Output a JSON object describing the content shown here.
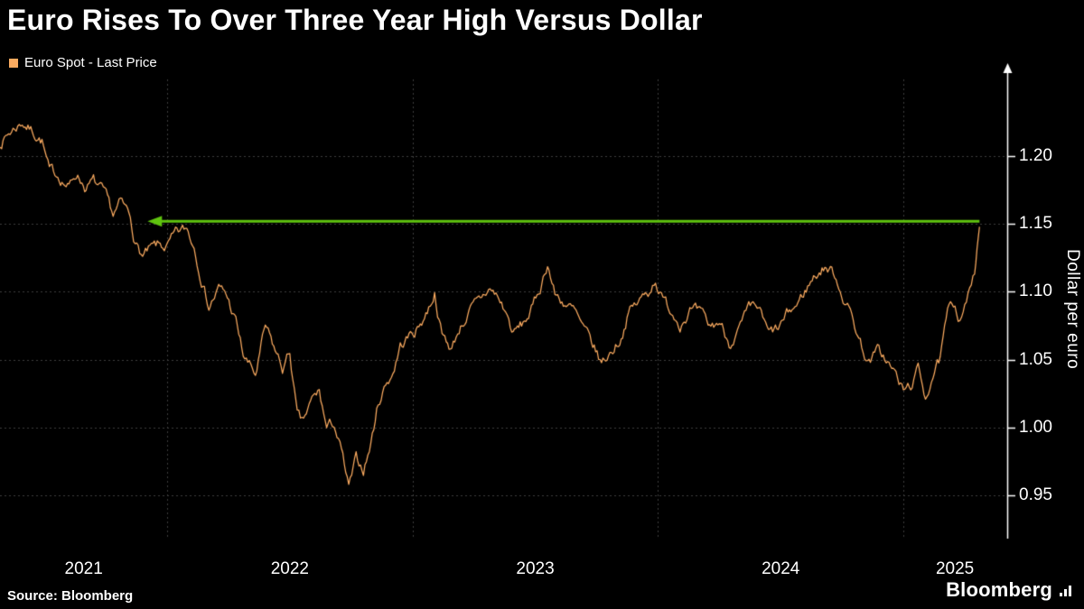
{
  "header": {
    "title": "Euro Rises To Over Three Year High Versus Dollar"
  },
  "legend": {
    "label": "Euro Spot - Last Price"
  },
  "axes": {
    "y_label": "Dollar per euro"
  },
  "footer": {
    "source_label": "Source: Bloomberg",
    "brand": "Bloomberg"
  },
  "colors": {
    "background": "#000000",
    "text": "#ffffff",
    "grid": "#3e3e3e",
    "axis": "#ffffff",
    "line": "#fbab60",
    "arrow": "#5fc30f"
  },
  "chart_data": {
    "type": "line",
    "title": "Euro Rises To Over Three Year High Versus Dollar",
    "xlabel": "",
    "ylabel": "Dollar per euro",
    "legend_position": "top-left",
    "grid": "dotted",
    "x_domain": [
      2021.319,
      2025.423
    ],
    "y_domain": [
      0.918,
      1.2567
    ],
    "y_ticks": [
      0.95,
      1.0,
      1.05,
      1.1,
      1.15,
      1.2
    ],
    "x_gridlines": [
      2022,
      2023,
      2024,
      2025
    ],
    "x_tick_labels": [
      {
        "label": "2021",
        "x": 2021.66
      },
      {
        "label": "2022",
        "x": 2022.5
      },
      {
        "label": "2023",
        "x": 2023.5
      },
      {
        "label": "2024",
        "x": 2024.5
      },
      {
        "label": "2025",
        "x": 2025.21
      }
    ],
    "annotation": {
      "type": "arrow-left",
      "y": 1.152,
      "x_start": 2025.31,
      "x_end": 2021.92,
      "color": "#5fc30f"
    },
    "series": [
      {
        "name": "Euro Spot - Last Price",
        "color": "#fbab60",
        "points": [
          [
            2021.32,
            1.21
          ],
          [
            2021.36,
            1.218
          ],
          [
            2021.41,
            1.2255
          ],
          [
            2021.45,
            1.219
          ],
          [
            2021.49,
            1.212
          ],
          [
            2021.52,
            1.188
          ],
          [
            2021.56,
            1.186
          ],
          [
            2021.6,
            1.177
          ],
          [
            2021.63,
            1.188
          ],
          [
            2021.67,
            1.177
          ],
          [
            2021.7,
            1.181
          ],
          [
            2021.74,
            1.172
          ],
          [
            2021.78,
            1.156
          ],
          [
            2021.81,
            1.165
          ],
          [
            2021.85,
            1.156
          ],
          [
            2021.87,
            1.137
          ],
          [
            2021.9,
            1.126
          ],
          [
            2021.93,
            1.13
          ],
          [
            2021.96,
            1.133
          ],
          [
            2022.0,
            1.133
          ],
          [
            2022.04,
            1.142
          ],
          [
            2022.08,
            1.146
          ],
          [
            2022.11,
            1.134
          ],
          [
            2022.14,
            1.112
          ],
          [
            2022.17,
            1.09
          ],
          [
            2022.21,
            1.102
          ],
          [
            2022.24,
            1.098
          ],
          [
            2022.28,
            1.078
          ],
          [
            2022.31,
            1.053
          ],
          [
            2022.36,
            1.038
          ],
          [
            2022.4,
            1.073
          ],
          [
            2022.44,
            1.056
          ],
          [
            2022.47,
            1.043
          ],
          [
            2022.5,
            1.055
          ],
          [
            2022.53,
            1.008
          ],
          [
            2022.55,
            1.002
          ],
          [
            2022.59,
            1.019
          ],
          [
            2022.62,
            1.026
          ],
          [
            2022.65,
            0.999
          ],
          [
            2022.68,
            1.003
          ],
          [
            2022.71,
            0.982
          ],
          [
            2022.74,
            0.954
          ],
          [
            2022.77,
            0.975
          ],
          [
            2022.8,
            0.969
          ],
          [
            2022.83,
            0.988
          ],
          [
            2022.86,
            1.018
          ],
          [
            2022.89,
            1.032
          ],
          [
            2022.92,
            1.041
          ],
          [
            2022.95,
            1.06
          ],
          [
            2022.98,
            1.066
          ],
          [
            2023.02,
            1.073
          ],
          [
            2023.06,
            1.086
          ],
          [
            2023.09,
            1.1
          ],
          [
            2023.12,
            1.068
          ],
          [
            2023.16,
            1.058
          ],
          [
            2023.19,
            1.073
          ],
          [
            2023.23,
            1.085
          ],
          [
            2023.27,
            1.092
          ],
          [
            2023.31,
            1.102
          ],
          [
            2023.34,
            1.098
          ],
          [
            2023.38,
            1.085
          ],
          [
            2023.41,
            1.069
          ],
          [
            2023.45,
            1.076
          ],
          [
            2023.49,
            1.088
          ],
          [
            2023.52,
            1.103
          ],
          [
            2023.55,
            1.122
          ],
          [
            2023.58,
            1.098
          ],
          [
            2023.62,
            1.092
          ],
          [
            2023.66,
            1.085
          ],
          [
            2023.7,
            1.07
          ],
          [
            2023.74,
            1.058
          ],
          [
            2023.77,
            1.047
          ],
          [
            2023.81,
            1.056
          ],
          [
            2023.85,
            1.067
          ],
          [
            2023.88,
            1.085
          ],
          [
            2023.92,
            1.092
          ],
          [
            2023.96,
            1.1
          ],
          [
            2023.99,
            1.11
          ],
          [
            2024.02,
            1.094
          ],
          [
            2024.06,
            1.085
          ],
          [
            2024.09,
            1.078
          ],
          [
            2024.13,
            1.087
          ],
          [
            2024.17,
            1.083
          ],
          [
            2024.21,
            1.073
          ],
          [
            2024.25,
            1.078
          ],
          [
            2024.29,
            1.063
          ],
          [
            2024.33,
            1.072
          ],
          [
            2024.37,
            1.085
          ],
          [
            2024.41,
            1.088
          ],
          [
            2024.45,
            1.068
          ],
          [
            2024.49,
            1.072
          ],
          [
            2024.53,
            1.083
          ],
          [
            2024.57,
            1.091
          ],
          [
            2024.61,
            1.104
          ],
          [
            2024.64,
            1.112
          ],
          [
            2024.68,
            1.119
          ],
          [
            2024.72,
            1.113
          ],
          [
            2024.76,
            1.095
          ],
          [
            2024.79,
            1.082
          ],
          [
            2024.83,
            1.06
          ],
          [
            2024.86,
            1.048
          ],
          [
            2024.9,
            1.057
          ],
          [
            2024.93,
            1.05
          ],
          [
            2024.97,
            1.038
          ],
          [
            2025.0,
            1.026
          ],
          [
            2025.03,
            1.031
          ],
          [
            2025.06,
            1.042
          ],
          [
            2025.09,
            1.023
          ],
          [
            2025.12,
            1.04
          ],
          [
            2025.15,
            1.049
          ],
          [
            2025.18,
            1.083
          ],
          [
            2025.21,
            1.09
          ],
          [
            2025.23,
            1.081
          ],
          [
            2025.25,
            1.095
          ],
          [
            2025.27,
            1.102
          ],
          [
            2025.29,
            1.112
          ],
          [
            2025.3,
            1.132
          ],
          [
            2025.31,
            1.148
          ]
        ]
      }
    ],
    "source": "Source: Bloomberg"
  }
}
